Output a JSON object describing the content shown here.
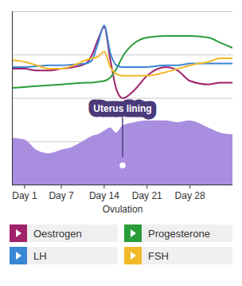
{
  "chart_data": {
    "type": "line",
    "x": [
      -1,
      1,
      3,
      5,
      7,
      9,
      11,
      12,
      13,
      14,
      15,
      16,
      17,
      19,
      21,
      24,
      26,
      28,
      31,
      33,
      35
    ],
    "xlim": [
      -1,
      35
    ],
    "xticks": [
      {
        "value": 1,
        "label": "Day 1"
      },
      {
        "value": 7,
        "label": "Day 7"
      },
      {
        "value": 14,
        "label": "Day 14"
      },
      {
        "value": 21,
        "label": "Day 21"
      },
      {
        "value": 28,
        "label": "Day 28"
      }
    ],
    "x_label": "Ovulation",
    "ylim": [
      0,
      100
    ],
    "yticks": [
      0,
      25,
      50,
      75,
      100
    ],
    "grid": true,
    "tick_labels": "x",
    "legend": "bottom",
    "series": [
      {
        "name": "Uterus lining",
        "type": "area",
        "color": "#a98ee0",
        "values": [
          27,
          26,
          20,
          18,
          20,
          22,
          26,
          28,
          29,
          31,
          33,
          30,
          34,
          36,
          37,
          37,
          36,
          37,
          33,
          30,
          29
        ]
      },
      {
        "name": "Oestrogen",
        "type": "line",
        "color": "#a0226b",
        "values": [
          67,
          67,
          66,
          66,
          67,
          68,
          70,
          75,
          84,
          91,
          72,
          55,
          50,
          55,
          63,
          68,
          66,
          60,
          58,
          59,
          59
        ]
      },
      {
        "name": "Progesterone",
        "type": "line",
        "color": "#2a9d3a",
        "values": [
          56,
          56.5,
          57,
          57.5,
          58,
          58.5,
          59,
          59,
          59.5,
          60,
          62,
          67,
          74,
          82,
          85,
          86,
          86,
          86,
          85,
          82,
          79
        ]
      },
      {
        "name": "LH",
        "type": "line",
        "color": "#3a86d4",
        "values": [
          68,
          68,
          68.5,
          69,
          69,
          69.5,
          70,
          72,
          82,
          92,
          76,
          69,
          68,
          68,
          68,
          69,
          69,
          70,
          70,
          70,
          70
        ]
      },
      {
        "name": "FSH",
        "type": "line",
        "color": "#f2b928",
        "values": [
          72,
          71,
          69,
          67,
          67,
          69,
          72,
          73,
          74,
          77,
          68,
          64,
          63,
          63,
          63,
          65,
          67,
          69,
          71,
          73,
          73
        ]
      }
    ]
  }
}
